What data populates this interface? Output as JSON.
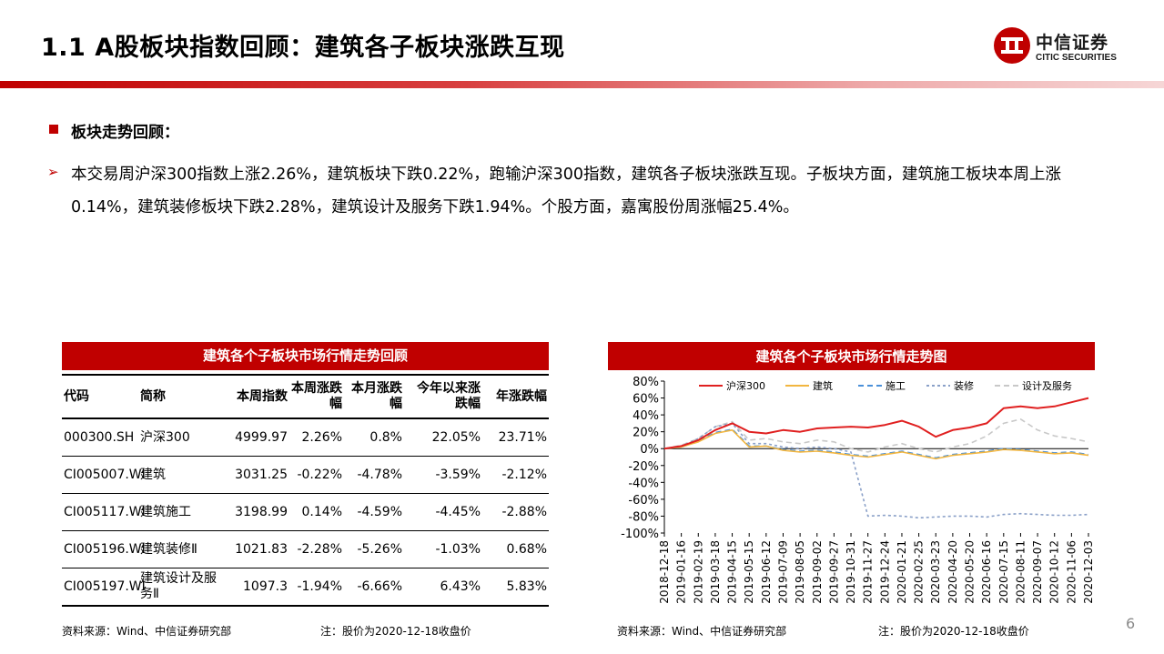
{
  "header": {
    "title": "1.1 A股板块指数回顾：建筑各子板块涨跌互现",
    "logo_cn": "中信证券",
    "logo_en": "CITIC SECURITIES"
  },
  "section": {
    "heading": "板块走势回顾：",
    "paragraph": "本交易周沪深300指数上涨2.26%，建筑板块下跌0.22%，跑输沪深300指数，建筑各子板块涨跌互现。子板块方面，建筑施工板块本周上涨0.14%，建筑装修板块下跌2.28%，建筑设计及服务下跌1.94%。个股方面，嘉寓股份周涨幅25.4%。"
  },
  "table": {
    "title": "建筑各个子板块市场行情走势回顾",
    "headers": [
      "代码",
      "简称",
      "本周指数",
      "本周涨跌幅",
      "本月涨跌幅",
      "今年以来涨跌幅",
      "年涨跌幅"
    ],
    "rows": [
      [
        "000300.SH",
        "沪深300",
        "4999.97",
        "2.26%",
        "0.8%",
        "22.05%",
        "23.71%"
      ],
      [
        "CI005007.WI",
        "建筑",
        "3031.25",
        "-0.22%",
        "-4.78%",
        "-3.59%",
        "-2.12%"
      ],
      [
        "CI005117.WI",
        "建筑施工",
        "3198.99",
        "0.14%",
        "-4.59%",
        "-4.45%",
        "-2.88%"
      ],
      [
        "CI005196.WI",
        "建筑装修Ⅱ",
        "1021.83",
        "-2.28%",
        "-5.26%",
        "-1.03%",
        "0.68%"
      ],
      [
        "CI005197.WI",
        "建筑设计及服务Ⅱ",
        "1097.3",
        "-1.94%",
        "-6.66%",
        "6.43%",
        "5.83%"
      ]
    ],
    "source": "资料来源：Wind、中信证券研究部",
    "note": "注：股价为2020-12-18收盘价"
  },
  "chart_data": {
    "type": "line",
    "title": "建筑各个子板块市场行情走势图",
    "x": [
      "2018-12-18",
      "2019-01-16",
      "2019-02-19",
      "2019-03-18",
      "2019-04-15",
      "2019-05-15",
      "2019-06-12",
      "2019-07-09",
      "2019-08-05",
      "2019-09-02",
      "2019-09-27",
      "2019-10-31",
      "2019-11-27",
      "2019-12-24",
      "2020-01-21",
      "2020-02-25",
      "2020-03-23",
      "2020-04-20",
      "2020-05-20",
      "2020-06-16",
      "2020-07-15",
      "2020-08-11",
      "2020-09-07",
      "2020-10-12",
      "2020-11-06",
      "2020-12-03"
    ],
    "ylim": [
      -100,
      80
    ],
    "yticks": [
      "80%",
      "60%",
      "40%",
      "20%",
      "0%",
      "-20%",
      "-40%",
      "-60%",
      "-80%",
      "-100%"
    ],
    "series": [
      {
        "name": "沪深300",
        "color": "#e02020",
        "dash": "",
        "values": [
          0,
          3,
          10,
          22,
          30,
          20,
          18,
          22,
          20,
          24,
          25,
          26,
          25,
          28,
          33,
          26,
          14,
          22,
          25,
          30,
          48,
          50,
          48,
          50,
          55,
          60
        ]
      },
      {
        "name": "建筑",
        "color": "#f2b640",
        "dash": "",
        "values": [
          0,
          2,
          8,
          18,
          22,
          2,
          3,
          -2,
          -4,
          -3,
          -5,
          -8,
          -10,
          -7,
          -4,
          -8,
          -12,
          -8,
          -6,
          -4,
          -1,
          -2,
          -4,
          -6,
          -5,
          -8
        ]
      },
      {
        "name": "施工",
        "color": "#4a90d9",
        "dash": "6,4",
        "values": [
          0,
          2,
          9,
          19,
          23,
          3,
          3,
          -1,
          -3,
          -2,
          -4,
          -7,
          -9,
          -6,
          -3,
          -7,
          -11,
          -7,
          -5,
          -3,
          0,
          -1,
          -3,
          -5,
          -4,
          -7
        ]
      },
      {
        "name": "装修",
        "color": "#8aa0c8",
        "dash": "3,3",
        "values": [
          0,
          3,
          12,
          26,
          30,
          6,
          6,
          2,
          0,
          2,
          0,
          -4,
          -80,
          -79,
          -80,
          -82,
          -81,
          -80,
          -80,
          -81,
          -78,
          -77,
          -78,
          -79,
          -79,
          -78
        ]
      },
      {
        "name": "设计及服务",
        "color": "#c8c8c8",
        "dash": "6,4",
        "values": [
          0,
          4,
          12,
          26,
          32,
          10,
          12,
          8,
          6,
          10,
          8,
          0,
          -4,
          2,
          6,
          0,
          -4,
          2,
          6,
          15,
          30,
          35,
          22,
          15,
          12,
          8
        ]
      }
    ]
  },
  "chart_footer": {
    "source": "资料来源：Wind、中信证券研究部",
    "note": "注：股价为2020-12-18收盘价"
  },
  "page_number": "6"
}
